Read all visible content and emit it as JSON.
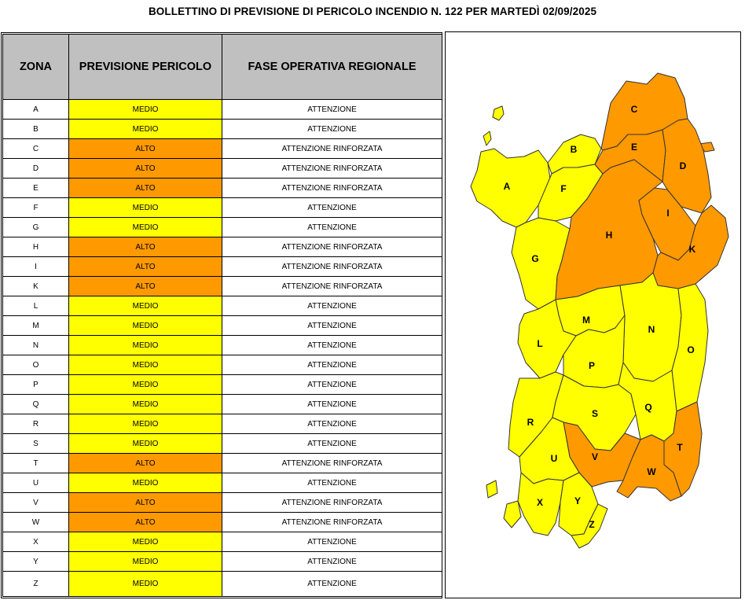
{
  "title": "BOLLETTINO DI PREVISIONE DI PERICOLO INCENDIO N. 122 PER MARTEDÌ 02/09/2025",
  "table": {
    "headers": {
      "zona": "ZONA",
      "previsione": "PREVISIONE PERICOLO",
      "fase": "FASE OPERATIVA REGIONALE"
    },
    "rows": [
      {
        "zona": "A",
        "previsione": "MEDIO",
        "fase": "ATTENZIONE"
      },
      {
        "zona": "B",
        "previsione": "MEDIO",
        "fase": "ATTENZIONE"
      },
      {
        "zona": "C",
        "previsione": "ALTO",
        "fase": "ATTENZIONE RINFORZATA"
      },
      {
        "zona": "D",
        "previsione": "ALTO",
        "fase": "ATTENZIONE RINFORZATA"
      },
      {
        "zona": "E",
        "previsione": "ALTO",
        "fase": "ATTENZIONE RINFORZATA"
      },
      {
        "zona": "F",
        "previsione": "MEDIO",
        "fase": "ATTENZIONE"
      },
      {
        "zona": "G",
        "previsione": "MEDIO",
        "fase": "ATTENZIONE"
      },
      {
        "zona": "H",
        "previsione": "ALTO",
        "fase": "ATTENZIONE RINFORZATA"
      },
      {
        "zona": "I",
        "previsione": "ALTO",
        "fase": "ATTENZIONE RINFORZATA"
      },
      {
        "zona": "K",
        "previsione": "ALTO",
        "fase": "ATTENZIONE RINFORZATA"
      },
      {
        "zona": "L",
        "previsione": "MEDIO",
        "fase": "ATTENZIONE"
      },
      {
        "zona": "M",
        "previsione": "MEDIO",
        "fase": "ATTENZIONE"
      },
      {
        "zona": "N",
        "previsione": "MEDIO",
        "fase": "ATTENZIONE"
      },
      {
        "zona": "O",
        "previsione": "MEDIO",
        "fase": "ATTENZIONE"
      },
      {
        "zona": "P",
        "previsione": "MEDIO",
        "fase": "ATTENZIONE"
      },
      {
        "zona": "Q",
        "previsione": "MEDIO",
        "fase": "ATTENZIONE"
      },
      {
        "zona": "R",
        "previsione": "MEDIO",
        "fase": "ATTENZIONE"
      },
      {
        "zona": "S",
        "previsione": "MEDIO",
        "fase": "ATTENZIONE"
      },
      {
        "zona": "T",
        "previsione": "ALTO",
        "fase": "ATTENZIONE RINFORZATA"
      },
      {
        "zona": "U",
        "previsione": "MEDIO",
        "fase": "ATTENZIONE"
      },
      {
        "zona": "V",
        "previsione": "ALTO",
        "fase": "ATTENZIONE RINFORZATA"
      },
      {
        "zona": "W",
        "previsione": "ALTO",
        "fase": "ATTENZIONE RINFORZATA"
      },
      {
        "zona": "X",
        "previsione": "MEDIO",
        "fase": "ATTENZIONE"
      },
      {
        "zona": "Y",
        "previsione": "MEDIO",
        "fase": "ATTENZIONE"
      },
      {
        "zona": "Z",
        "previsione": "MEDIO",
        "fase": "ATTENZIONE"
      }
    ]
  },
  "colors": {
    "MEDIO": "#ffff00",
    "ALTO": "#ff9900",
    "header_bg": "#c0c0c0",
    "border": "#000000"
  },
  "map": {
    "zones": [
      "A",
      "B",
      "C",
      "D",
      "E",
      "F",
      "G",
      "H",
      "I",
      "K",
      "L",
      "M",
      "N",
      "O",
      "P",
      "Q",
      "R",
      "S",
      "T",
      "U",
      "V",
      "W",
      "X",
      "Y",
      "Z"
    ]
  }
}
